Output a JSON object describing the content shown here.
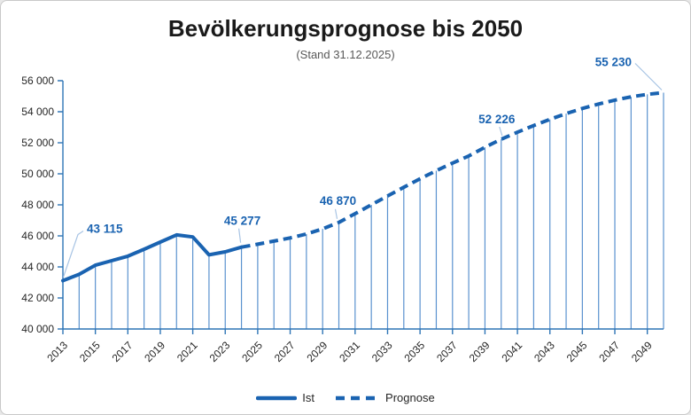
{
  "chart_data": {
    "type": "line",
    "title": "Bevölkerungsprognose bis 2050",
    "subtitle": "(Stand 31.12.2025)",
    "xlabel": "",
    "ylabel": "",
    "ylim": [
      40000,
      56000
    ],
    "x_range": [
      2013,
      2050
    ],
    "grid": false,
    "legend_position": "bottom-center",
    "y_ticks": [
      {
        "value": 40000,
        "label": "40 000"
      },
      {
        "value": 42000,
        "label": "42 000"
      },
      {
        "value": 44000,
        "label": "44 000"
      },
      {
        "value": 46000,
        "label": "46 000"
      },
      {
        "value": 48000,
        "label": "48 000"
      },
      {
        "value": 50000,
        "label": "50 000"
      },
      {
        "value": 52000,
        "label": "52 000"
      },
      {
        "value": 54000,
        "label": "54 000"
      },
      {
        "value": 56000,
        "label": "56 000"
      }
    ],
    "x_ticks": [
      {
        "value": 2013,
        "label": "2013"
      },
      {
        "value": 2015,
        "label": "2015"
      },
      {
        "value": 2017,
        "label": "2017"
      },
      {
        "value": 2019,
        "label": "2019"
      },
      {
        "value": 2021,
        "label": "2021"
      },
      {
        "value": 2023,
        "label": "2023"
      },
      {
        "value": 2025,
        "label": "2025"
      },
      {
        "value": 2027,
        "label": "2027"
      },
      {
        "value": 2029,
        "label": "2029"
      },
      {
        "value": 2031,
        "label": "2031"
      },
      {
        "value": 2033,
        "label": "2033"
      },
      {
        "value": 2035,
        "label": "2035"
      },
      {
        "value": 2037,
        "label": "2037"
      },
      {
        "value": 2039,
        "label": "2039"
      },
      {
        "value": 2041,
        "label": "2041"
      },
      {
        "value": 2043,
        "label": "2043"
      },
      {
        "value": 2045,
        "label": "2045"
      },
      {
        "value": 2047,
        "label": "2047"
      },
      {
        "value": 2049,
        "label": "2049"
      }
    ],
    "series": [
      {
        "name": "Ist",
        "style": "solid",
        "x": [
          2013,
          2014,
          2015,
          2016,
          2017,
          2018,
          2019,
          2020,
          2021,
          2022,
          2023,
          2024
        ],
        "values": [
          43115,
          43520,
          44110,
          44400,
          44690,
          45140,
          45600,
          46060,
          45930,
          44780,
          44970,
          45277
        ]
      },
      {
        "name": "Prognose",
        "style": "dashed",
        "x": [
          2024,
          2025,
          2026,
          2027,
          2028,
          2029,
          2030,
          2031,
          2032,
          2033,
          2034,
          2035,
          2036,
          2037,
          2038,
          2039,
          2040,
          2041,
          2042,
          2043,
          2044,
          2045,
          2046,
          2047,
          2048,
          2049,
          2050
        ],
        "values": [
          45277,
          45460,
          45660,
          45870,
          46120,
          46450,
          46870,
          47430,
          48000,
          48570,
          49130,
          49680,
          50200,
          50690,
          51150,
          51710,
          52226,
          52680,
          53110,
          53510,
          53880,
          54210,
          54500,
          54750,
          54960,
          55120,
          55230
        ]
      }
    ],
    "callouts": [
      {
        "year": 2013,
        "value": 43115,
        "text": "43 115"
      },
      {
        "year": 2024,
        "value": 45277,
        "text": "45 277"
      },
      {
        "year": 2030,
        "value": 46870,
        "text": "46 870"
      },
      {
        "year": 2040,
        "value": 52226,
        "text": "52 226"
      },
      {
        "year": 2050,
        "value": 55230,
        "text": "55 230"
      }
    ],
    "colors": {
      "line": "#1a63b1",
      "drop_line": "#5a92cf",
      "axis": "#2e75b6",
      "leader": "#a8c4e4",
      "data_label": "#1a63b1",
      "tick_text": "#262626",
      "title": "#1a1a1a",
      "subtitle": "#595959"
    }
  },
  "legend": {
    "items": [
      {
        "label": "Ist",
        "style": "solid"
      },
      {
        "label": "Prognose",
        "style": "dashed"
      }
    ]
  }
}
